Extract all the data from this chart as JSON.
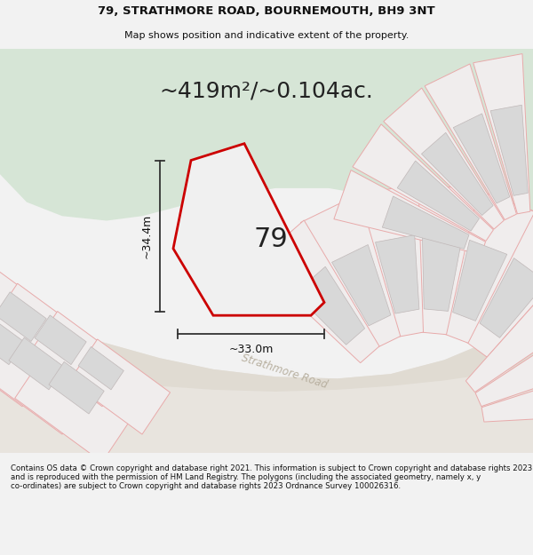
{
  "title_line1": "79, STRATHMORE ROAD, BOURNEMOUTH, BH9 3NT",
  "title_line2": "Map shows position and indicative extent of the property.",
  "area_text": "~419m²/~0.104ac.",
  "label_number": "79",
  "dim_height": "~34.4m",
  "dim_width": "~33.0m",
  "road_label": "Strathmore Road",
  "footer_text": "Contains OS data © Crown copyright and database right 2021. This information is subject to Crown copyright and database rights 2023 and is reproduced with the permission of HM Land Registry. The polygons (including the associated geometry, namely x, y co-ordinates) are subject to Crown copyright and database rights 2023 Ordnance Survey 100026316.",
  "bg_color": "#f2f2f2",
  "map_bg": "#f2f2f2",
  "green_color": "#d6e5d6",
  "road_color": "#e8e4de",
  "parcel_fill": "#f0eded",
  "parcel_outline": "#e8aaaa",
  "building_fill": "#d8d8d8",
  "building_outline": "#c0b8b8",
  "property_fill": "#f0f0f0",
  "property_outline": "#cc0000",
  "title_fontsize": 9.5,
  "subtitle_fontsize": 8,
  "area_fontsize": 18,
  "number_fontsize": 22,
  "dim_fontsize": 9,
  "road_fontsize": 8.5,
  "footer_fontsize": 6.2
}
